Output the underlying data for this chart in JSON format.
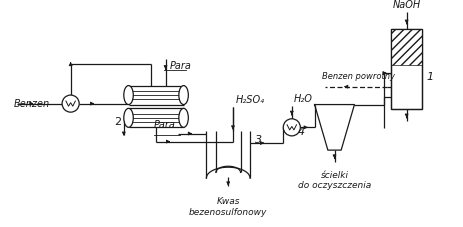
{
  "background": "#ffffff",
  "line_color": "#1a1a1a",
  "labels": {
    "benzen": "Benzen",
    "para_top": "Para",
    "para_bottom": "Para",
    "h2so4": "H₂SO₄",
    "h2o": "H₂O",
    "naoh": "NaOH",
    "benzen_powrotny": "Benzen powrotny",
    "kwas": "Kwas\nbezenosulfonowy",
    "scielki": "ścielki\ndo oczyszczenia",
    "num1": "1",
    "num2": "2",
    "num3": "3",
    "num4": "4"
  }
}
